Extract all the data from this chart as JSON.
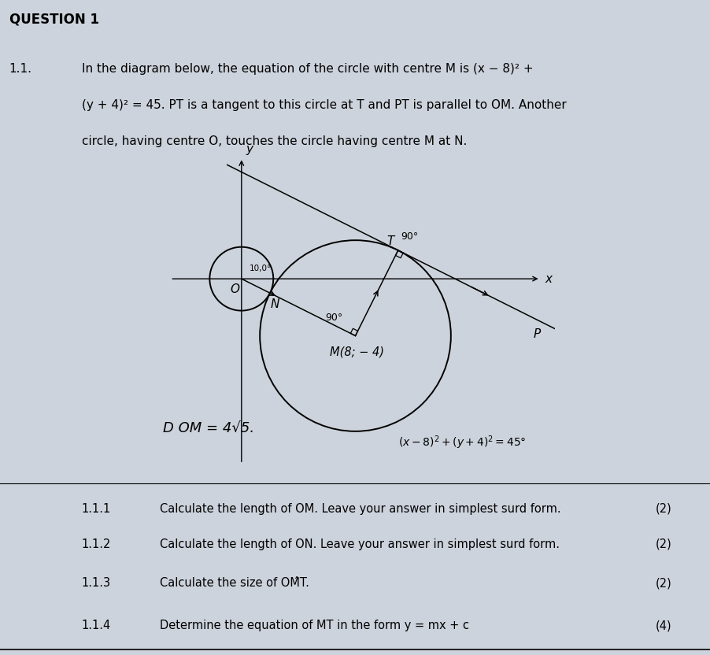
{
  "bg_color": "#cdd3dc",
  "title": "QUESTION 1",
  "q_num": "1.1.",
  "intro_line1": "In the diagram below, the equation of the circle with centre M is (x − 8)² +",
  "intro_line2": "(y + 4)² = 45. PT is a tangent to this circle at T and PT is parallel to OM. Another",
  "intro_line3": "circle, having centre O, touches the circle having centre M at N.",
  "M": [
    8,
    -4
  ],
  "O": [
    0,
    0
  ],
  "subquestions": [
    {
      "num": "1.1.1",
      "text": "Calculate the length of OM. Leave your answer in simplest surd form.",
      "marks": "(2)"
    },
    {
      "num": "1.1.2",
      "text": "Calculate the length of ON. Leave your answer in simplest surd form.",
      "marks": "(2)"
    },
    {
      "num": "1.1.3",
      "text": "Calculate the size of OM̂T.",
      "marks": "(2)"
    },
    {
      "num": "1.1.4",
      "text": "Determine the equation of MT in the form y = mx + c",
      "marks": "(4)"
    }
  ]
}
